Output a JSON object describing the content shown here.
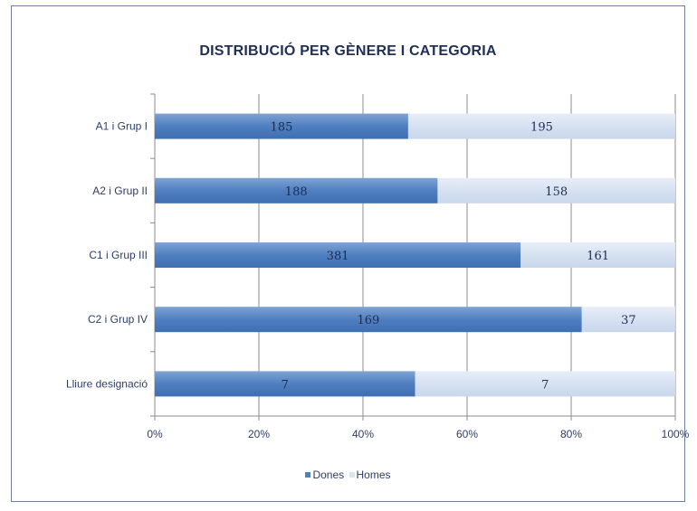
{
  "chart_data": {
    "type": "bar",
    "orientation": "horizontal",
    "stacked": "percent",
    "title": "DISTRIBUCIÓ PER GÈNERE I CATEGORIA",
    "categories": [
      "A1 i Grup I",
      "A2 i Grup II",
      "C1 i Grup III",
      "C2 i Grup IV",
      "Lliure designació"
    ],
    "series": [
      {
        "name": "Dones",
        "values": [
          185,
          188,
          381,
          169,
          7
        ],
        "color": "#4f81bd"
      },
      {
        "name": "Homes",
        "values": [
          195,
          158,
          161,
          37,
          7
        ],
        "color": "#dbe5f1"
      }
    ],
    "xticks": [
      "0%",
      "20%",
      "40%",
      "60%",
      "80%",
      "100%"
    ],
    "xlim": [
      0,
      100
    ],
    "grid": true,
    "legend_position": "bottom"
  }
}
